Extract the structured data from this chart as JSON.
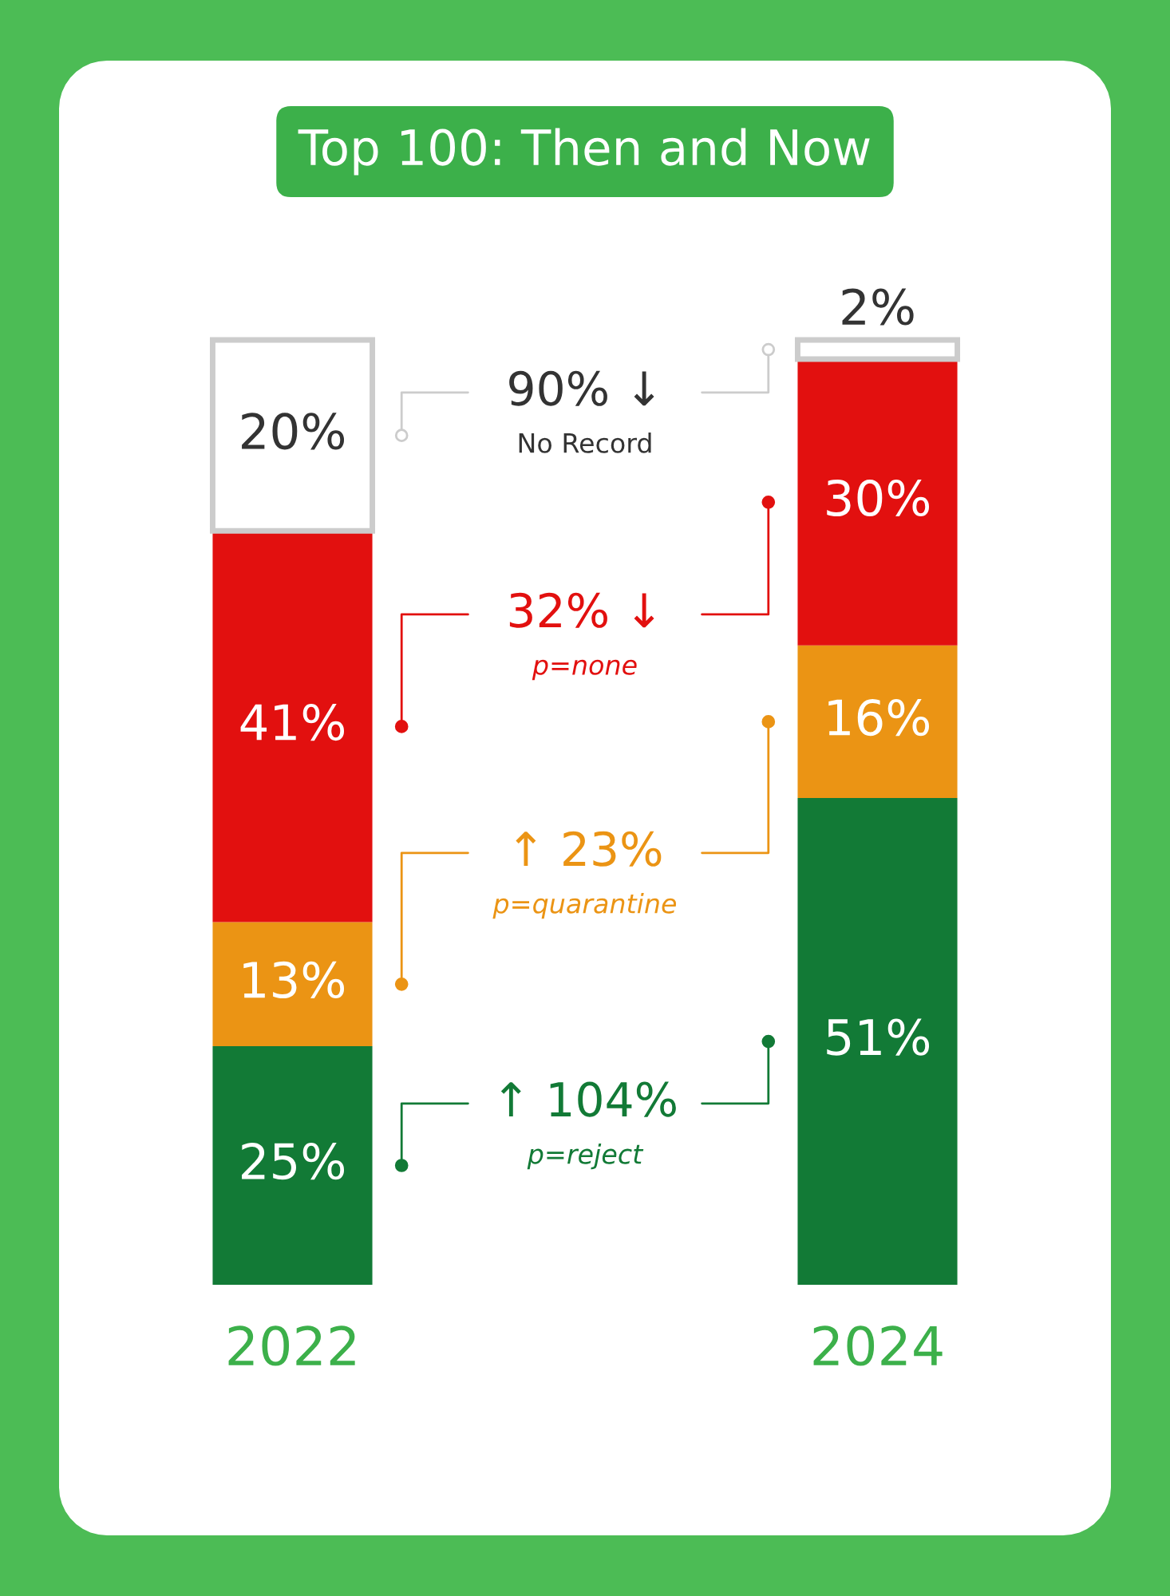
{
  "chart_data": {
    "type": "bar",
    "title": "Top 100: Then and Now",
    "stacked": true,
    "categories": [
      "2022",
      "2024"
    ],
    "series": [
      {
        "name": "p=reject",
        "color": "#127a36",
        "values": [
          25,
          51
        ],
        "value_labels": [
          "25%",
          "51%"
        ]
      },
      {
        "name": "p=quarantine",
        "color": "#eb9414",
        "values": [
          13,
          16
        ],
        "value_labels": [
          "13%",
          "16%"
        ]
      },
      {
        "name": "p=none",
        "color": "#e2100f",
        "values": [
          41,
          30
        ],
        "value_labels": [
          "41%",
          "30%"
        ]
      },
      {
        "color": "#ffffff",
        "values": [
          20,
          2
        ],
        "value_labels": [
          "20%",
          "2%"
        ]
      }
    ],
    "annotations": [
      "↑ 104%",
      "↑ 23%",
      "32% ↓",
      "90% ↓",
      "No Record"
    ],
    "legend": false,
    "grid": false
  }
}
